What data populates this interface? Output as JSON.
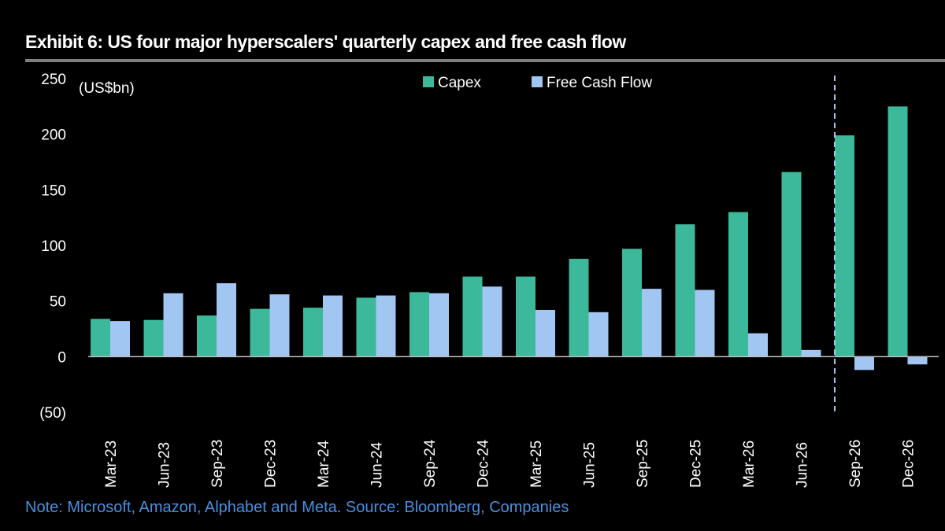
{
  "chart_data": {
    "type": "bar",
    "title": "Exhibit 6: US four major hyperscalers' quarterly capex and free cash flow",
    "ylabel": "(US$bn)",
    "xlabel": "",
    "ylim": [
      -50,
      250
    ],
    "yticks": [
      250,
      200,
      150,
      100,
      50,
      0,
      -50
    ],
    "ytick_labels": [
      "250",
      "200",
      "150",
      "100",
      "50",
      "0",
      "(50)"
    ],
    "grid": false,
    "legend_position": "top-center",
    "categories": [
      "Mar-23",
      "Jun-23",
      "Sep-23",
      "Dec-23",
      "Mar-24",
      "Jun-24",
      "Sep-24",
      "Dec-24",
      "Mar-25",
      "Jun-25",
      "Sep-25",
      "Dec-25",
      "Mar-26",
      "Jun-26",
      "Sep-26",
      "Dec-26"
    ],
    "series": [
      {
        "name": "Capex",
        "color": "#3cb89a",
        "values": [
          34,
          33,
          37,
          43,
          44,
          53,
          58,
          72,
          72,
          88,
          97,
          119,
          130,
          166,
          199,
          225
        ]
      },
      {
        "name": "Free Cash Flow",
        "color": "#a2c6f2",
        "values": [
          32,
          57,
          66,
          56,
          55,
          55,
          57,
          63,
          42,
          40,
          61,
          60,
          21,
          6,
          -12,
          -7
        ]
      }
    ],
    "forecast_divider_after": "Jun-26",
    "note": "Note: Microsoft, Amazon, Alphabet and Meta. Source: Bloomberg, Companies"
  },
  "colors": {
    "background": "#000000",
    "text": "#ffffff",
    "note_text": "#4a8fe0",
    "title_rule": "#7f7f7f",
    "divider": "#a2c6f2"
  }
}
